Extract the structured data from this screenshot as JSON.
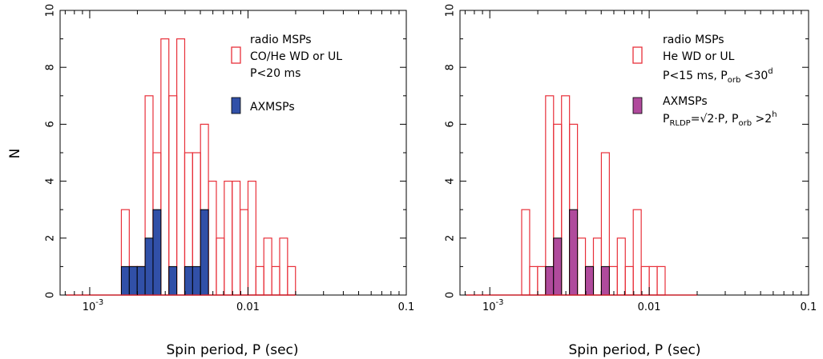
{
  "chart_data": [
    {
      "type": "histogram",
      "xscale": "log",
      "xlim": [
        0.00065,
        0.1
      ],
      "ylim": [
        0,
        10
      ],
      "xlabel": "Spin period, P  (sec)",
      "ylabel": "N",
      "x_tick_labels": [
        "10",
        "0.01",
        "0.1"
      ],
      "x_tick_label_exp": "-3",
      "y_tick_labels": [
        "0",
        "2",
        "4",
        "6",
        "8",
        "10"
      ],
      "legend": {
        "position": "top-right",
        "radio": {
          "title": "radio MSPs",
          "line1": "CO/He WD or UL",
          "line2": "P<20 ms",
          "color": "#e8303a"
        },
        "ax": {
          "title": "AXMSPs",
          "color": "#3150a8"
        }
      },
      "bin_width_log10": 0.05,
      "radio_bins": [
        {
          "lo": -2.8,
          "count": 3
        },
        {
          "lo": -2.75,
          "count": 1
        },
        {
          "lo": -2.7,
          "count": 1
        },
        {
          "lo": -2.65,
          "count": 7
        },
        {
          "lo": -2.6,
          "count": 5
        },
        {
          "lo": -2.55,
          "count": 9
        },
        {
          "lo": -2.5,
          "count": 7
        },
        {
          "lo": -2.45,
          "count": 9
        },
        {
          "lo": -2.4,
          "count": 5
        },
        {
          "lo": -2.35,
          "count": 5
        },
        {
          "lo": -2.3,
          "count": 6
        },
        {
          "lo": -2.25,
          "count": 4
        },
        {
          "lo": -2.2,
          "count": 2
        },
        {
          "lo": -2.15,
          "count": 4
        },
        {
          "lo": -2.1,
          "count": 4
        },
        {
          "lo": -2.05,
          "count": 3
        },
        {
          "lo": -2.0,
          "count": 4
        },
        {
          "lo": -1.95,
          "count": 1
        },
        {
          "lo": -1.9,
          "count": 2
        },
        {
          "lo": -1.85,
          "count": 1
        },
        {
          "lo": -1.8,
          "count": 2
        },
        {
          "lo": -1.75,
          "count": 1
        }
      ],
      "ax_bins": [
        {
          "lo": -2.8,
          "count": 1
        },
        {
          "lo": -2.75,
          "count": 1
        },
        {
          "lo": -2.7,
          "count": 1
        },
        {
          "lo": -2.65,
          "count": 2
        },
        {
          "lo": -2.6,
          "count": 3
        },
        {
          "lo": -2.5,
          "count": 1
        },
        {
          "lo": -2.4,
          "count": 1
        },
        {
          "lo": -2.35,
          "count": 1
        },
        {
          "lo": -2.3,
          "count": 3
        }
      ],
      "baseline_range": [
        -3.15,
        -1.7
      ]
    },
    {
      "type": "histogram",
      "xscale": "log",
      "xlim": [
        0.00065,
        0.1
      ],
      "ylim": [
        0,
        10
      ],
      "xlabel": "Spin period, P  (sec)",
      "ylabel": "",
      "x_tick_labels": [
        "10",
        "0.01",
        "0.1"
      ],
      "x_tick_label_exp": "-3",
      "y_tick_labels": [
        "0",
        "2",
        "4",
        "6",
        "8",
        "10"
      ],
      "legend": {
        "position": "top-right",
        "radio": {
          "title": "radio MSPs",
          "line1": "He WD or UL",
          "line2_main": "P<15 ms, P",
          "line2_sub": "orb",
          "line2_mid": " <30",
          "line2_sup": "d",
          "color": "#e8303a"
        },
        "ax": {
          "title": "AXMSPs",
          "line1_p": "P",
          "line1_sub": "RLDP",
          "line1_eq": "=",
          "line1_rest": "2·P, P",
          "line1_sub2": "orb",
          "line1_gt": " >2",
          "line1_sup": "h",
          "color": "#b04a9c"
        }
      },
      "bin_width_log10": 0.05,
      "radio_bins": [
        {
          "lo": -2.8,
          "count": 3
        },
        {
          "lo": -2.75,
          "count": 1
        },
        {
          "lo": -2.7,
          "count": 1
        },
        {
          "lo": -2.65,
          "count": 7
        },
        {
          "lo": -2.6,
          "count": 6
        },
        {
          "lo": -2.55,
          "count": 7
        },
        {
          "lo": -2.5,
          "count": 6
        },
        {
          "lo": -2.45,
          "count": 2
        },
        {
          "lo": -2.4,
          "count": 1
        },
        {
          "lo": -2.35,
          "count": 2
        },
        {
          "lo": -2.3,
          "count": 5
        },
        {
          "lo": -2.25,
          "count": 1
        },
        {
          "lo": -2.2,
          "count": 2
        },
        {
          "lo": -2.15,
          "count": 1
        },
        {
          "lo": -2.1,
          "count": 3
        },
        {
          "lo": -2.05,
          "count": 1
        },
        {
          "lo": -2.0,
          "count": 1
        },
        {
          "lo": -1.95,
          "count": 1
        }
      ],
      "ax_bins": [
        {
          "lo": -2.65,
          "count": 1
        },
        {
          "lo": -2.6,
          "count": 2
        },
        {
          "lo": -2.5,
          "count": 3
        },
        {
          "lo": -2.4,
          "count": 1
        },
        {
          "lo": -2.3,
          "count": 1
        }
      ],
      "baseline_range": [
        -3.15,
        -1.7
      ]
    }
  ]
}
